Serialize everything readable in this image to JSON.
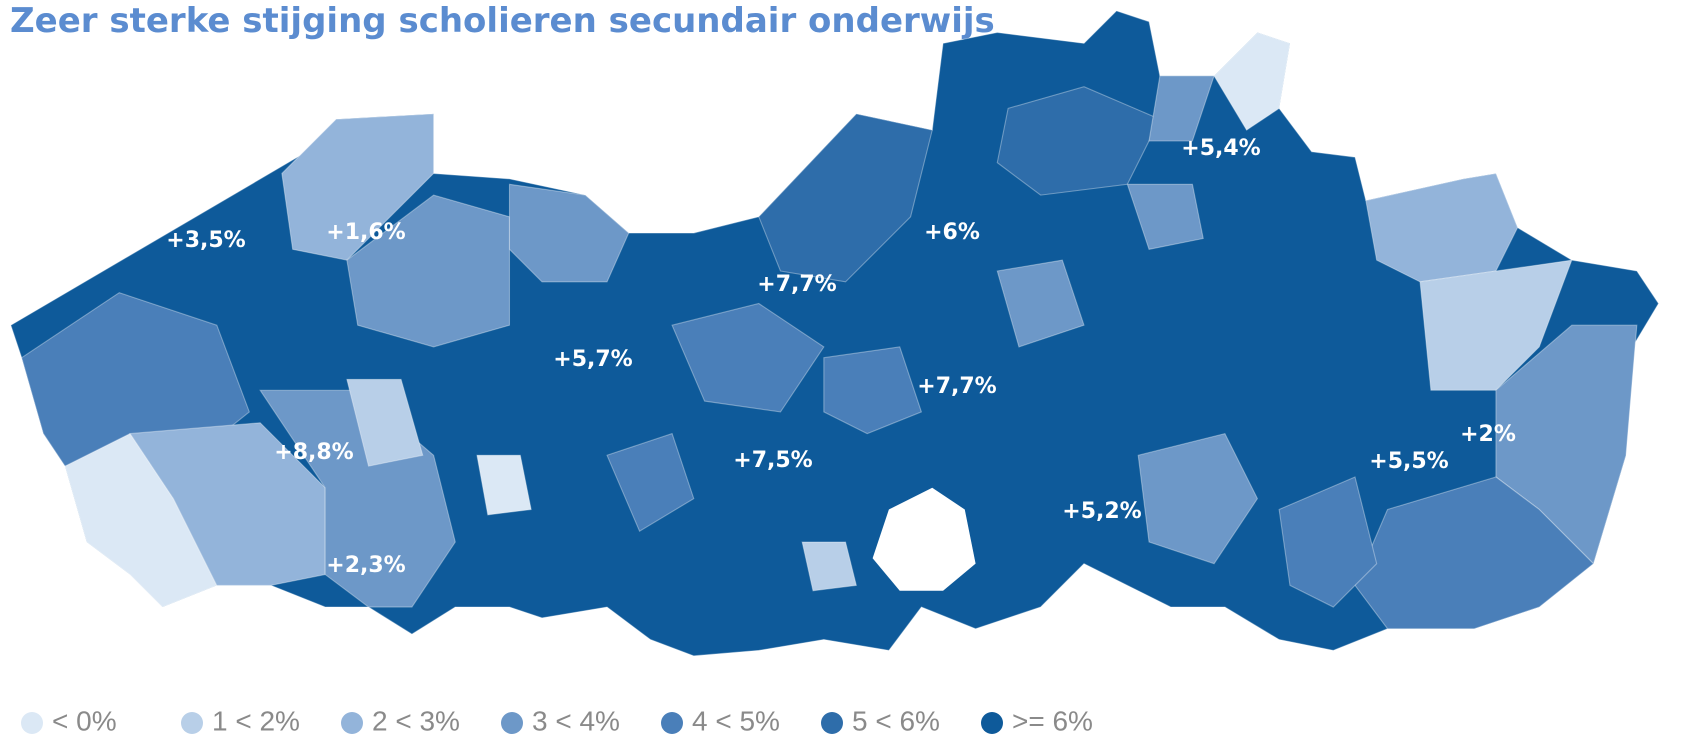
{
  "title": "Zeer sterke stijging scholieren secundair onderwijs",
  "regions": [
    {
      "label": "+3,5%"
    },
    {
      "label": "+1,6%"
    },
    {
      "label": "+6%"
    },
    {
      "label": "+7,7%"
    },
    {
      "label": "+5,4%"
    },
    {
      "label": "+5,7%"
    },
    {
      "label": "+7,7%"
    },
    {
      "label": "+8,8%"
    },
    {
      "label": "+7,5%"
    },
    {
      "label": "+5,2%"
    },
    {
      "label": "+5,5%"
    },
    {
      "label": "+2%"
    },
    {
      "label": "+2,3%"
    }
  ],
  "legend": [
    {
      "label": "< 0%",
      "color": "#dbe8f5"
    },
    {
      "label": "1 < 2%",
      "color": "#b8cfe8"
    },
    {
      "label": "2 < 3%",
      "color": "#93b4da"
    },
    {
      "label": "3 < 4%",
      "color": "#6d98c8"
    },
    {
      "label": "4 < 5%",
      "color": "#4a7fb9"
    },
    {
      "label": "5 < 6%",
      "color": "#2e6daa"
    },
    {
      "label": ">= 6%",
      "color": "#0e5a9a"
    }
  ]
}
